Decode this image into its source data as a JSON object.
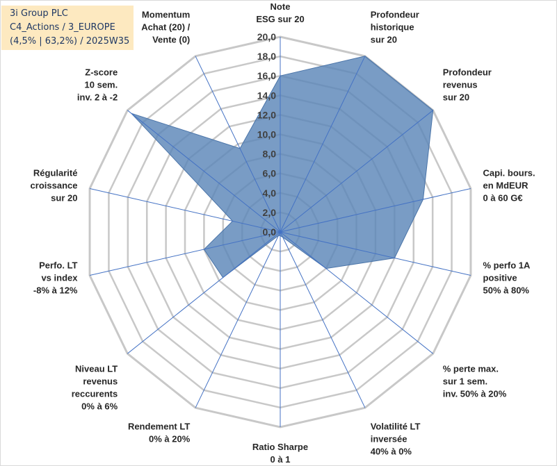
{
  "info": {
    "line1": "3i Group PLC",
    "line2": "C4_Actions / 3_EUROPE",
    "line3": "(4,5% | 63,2%) / 2025W35"
  },
  "colors": {
    "fill": "#5b86b8",
    "stroke": "#4a74a8",
    "grid": "#c8c8c8",
    "spoke": "#4472c4",
    "info_bg": "#fde9c0"
  },
  "chart_data": {
    "type": "radar",
    "title": "",
    "rmin": 0,
    "rmax": 20,
    "tick_step": 2,
    "ticks": [
      "0,0",
      "2,0",
      "4,0",
      "6,0",
      "8,0",
      "10,0",
      "12,0",
      "14,0",
      "16,0",
      "18,0",
      "20,0"
    ],
    "axes": [
      [
        "Note",
        "ESG sur 20"
      ],
      [
        "Profondeur",
        "historique",
        "sur 20"
      ],
      [
        "Profondeur",
        "revenus",
        "sur 20"
      ],
      [
        "Capi. bours.",
        "en MdEUR",
        "0 à 60 G€"
      ],
      [
        "% perfo 1A",
        "positive",
        "50% à 80%"
      ],
      [
        "% perte max.",
        "sur 1 sem.",
        "inv. 50% à 20%"
      ],
      [
        "Volatilité LT",
        "inversée",
        "40% à 0%"
      ],
      [
        "Ratio Sharpe",
        "0 à 1"
      ],
      [
        "Rendement LT",
        "0% à 20%"
      ],
      [
        "Niveau LT",
        "revenus",
        "reccurents",
        "0% à 6%"
      ],
      [
        "Perfo. LT",
        "vs index",
        "-8% à 12%"
      ],
      [
        "Régularité",
        "croissance",
        "sur 20"
      ],
      [
        "Z-score",
        "10 sem.",
        "inv. 2 à -2"
      ],
      [
        "Momentum",
        "Achat (20) /",
        "Vente (0)"
      ]
    ],
    "series": [
      {
        "values": [
          16.0,
          20.0,
          20.0,
          15.0,
          12.0,
          6.0,
          0.6,
          0.4,
          0.4,
          7.5,
          8.0,
          5.0,
          19.5,
          9.5
        ]
      }
    ]
  }
}
